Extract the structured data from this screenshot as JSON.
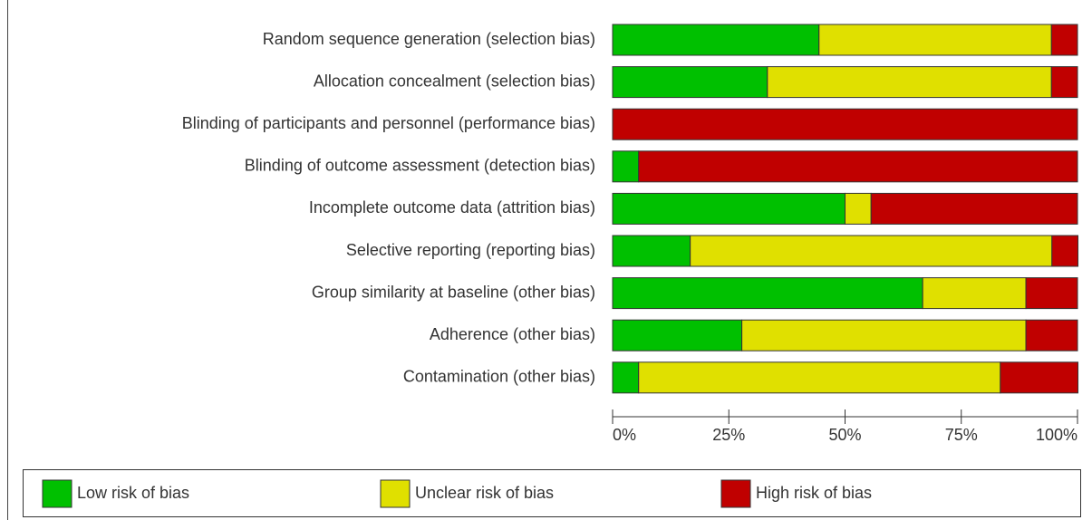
{
  "chart_data": {
    "type": "stacked-barh",
    "categories": [
      "Random sequence generation (selection bias)",
      "Allocation concealment (selection bias)",
      "Blinding of participants and personnel (performance bias)",
      "Blinding of outcome assessment (detection bias)",
      "Incomplete outcome data (attrition bias)",
      "Selective reporting (reporting bias)",
      "Group similarity at baseline (other bias)",
      "Adherence (other bias)",
      "Contamination (other bias)"
    ],
    "series": [
      {
        "name": "Low risk of bias",
        "color": "#00c000",
        "values": [
          44.4,
          33.3,
          0,
          5.6,
          50,
          16.7,
          66.7,
          27.8,
          5.6
        ]
      },
      {
        "name": "Unclear risk of bias",
        "color": "#e0e000",
        "values": [
          50,
          61.1,
          0,
          0,
          5.6,
          77.8,
          22.2,
          61.1,
          77.8
        ]
      },
      {
        "name": "High risk of bias",
        "color": "#c00000",
        "values": [
          5.6,
          5.6,
          100,
          94.4,
          44.4,
          5.6,
          11.1,
          11.1,
          16.7
        ]
      }
    ],
    "xlim": [
      0,
      100
    ],
    "xticks": [
      {
        "value": 0,
        "label": "0%"
      },
      {
        "value": 25,
        "label": "25%"
      },
      {
        "value": 50,
        "label": "50%"
      },
      {
        "value": 75,
        "label": "75%"
      },
      {
        "value": 100,
        "label": "100%"
      }
    ],
    "legend": "bottom"
  }
}
